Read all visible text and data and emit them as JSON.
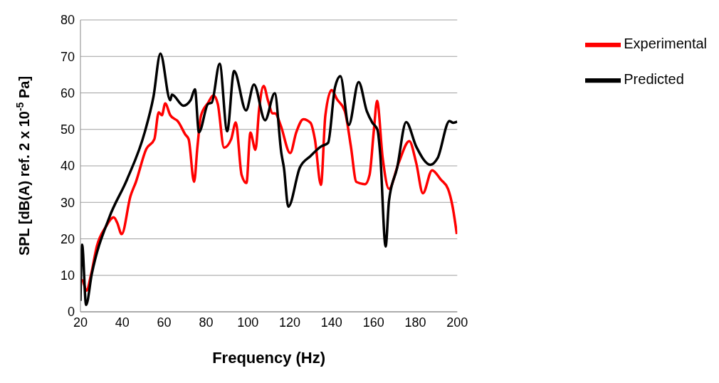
{
  "chart_data": {
    "type": "line",
    "xlabel": "Frequency (Hz)",
    "ylabel": "SPL [dB(A) ref. 2 x 10$^{-5}$ Pa]",
    "xlim": [
      20,
      200
    ],
    "xticks": [
      20,
      40,
      60,
      80,
      100,
      120,
      140,
      160,
      180,
      200
    ],
    "ylim": [
      0,
      80
    ],
    "yticks": [
      0,
      10,
      20,
      30,
      40,
      50,
      60,
      70,
      80
    ],
    "grid": "y",
    "legend": "top right",
    "marker": "none",
    "line_style": "solid",
    "series": [
      {
        "name": "Experimental",
        "color": "#ff0000",
        "x": [
          20,
          20.8,
          22.9,
          25,
          27.9,
          32.1,
          35.9,
          37.5,
          39.7,
          43.9,
          46.5,
          51.5,
          55.3,
          57.4,
          58.9,
          60.5,
          62.9,
          66.7,
          70.1,
          71.7,
          74.3,
          75.9,
          77.6,
          81,
          83.5,
          85.6,
          88.6,
          92,
          94.2,
          97,
          99.3,
          101.2,
          103.6,
          105.4,
          107.5,
          109.7,
          111.8,
          113,
          115.6,
          120.2,
          123.1,
          126.5,
          129.9,
          132,
          134.9,
          137,
          140,
          142.5,
          146.3,
          149.2,
          151.8,
          156,
          158.1,
          160.2,
          161.7,
          164.4,
          167.4,
          172,
          177.1,
          180.4,
          183.6,
          188,
          192.2,
          195.6,
          197.7,
          199.8
        ],
        "values": [
          8.5,
          8.7,
          5.8,
          10,
          18.1,
          23.3,
          25.9,
          24.5,
          21.3,
          31.7,
          35.6,
          44.7,
          47.3,
          54.7,
          53.9,
          57.1,
          53.9,
          52.1,
          48.6,
          47.3,
          35.6,
          45.3,
          53.8,
          57.3,
          59.3,
          57,
          45,
          47.3,
          51.9,
          37.5,
          35.3,
          49.1,
          44.4,
          55.7,
          61.9,
          57.7,
          54.4,
          54.4,
          51.2,
          43.5,
          49.2,
          52.8,
          51.8,
          47.3,
          34.8,
          53.8,
          60.8,
          58.3,
          55,
          45.3,
          35.6,
          35,
          37.5,
          49.9,
          57.8,
          42.1,
          33.7,
          40.8,
          46.8,
          40.8,
          32.5,
          38.8,
          36.2,
          33.7,
          29.1,
          21.3
        ]
      },
      {
        "name": "Predicted",
        "color": "#000000",
        "x": [
          20,
          20.8,
          22.7,
          25.4,
          33.8,
          42.2,
          50.7,
          54.9,
          58.2,
          62.9,
          63.7,
          69.2,
          72.6,
          74.7,
          76.6,
          81,
          82.7,
          86.5,
          90.1,
          93.4,
          99.1,
          102.9,
          108.2,
          112.8,
          116,
          117.2,
          119.3,
          124.8,
          129.9,
          134.9,
          138.3,
          141.6,
          144.2,
          148.2,
          152.9,
          156.8,
          159.4,
          161.9,
          163.2,
          165.8,
          167.4,
          171.3,
          175.6,
          180.4,
          187.2,
          190.6,
          196.3,
          198.1,
          200
        ],
        "values": [
          3,
          18.4,
          1.9,
          10.3,
          25.9,
          36.2,
          49.2,
          59,
          70.8,
          58,
          59.5,
          56.5,
          58,
          61,
          49.2,
          57,
          57.3,
          68,
          49.5,
          66,
          55.2,
          62.3,
          52.5,
          59.9,
          43.4,
          39.5,
          28.8,
          39.5,
          42.7,
          45.3,
          46.3,
          61.5,
          64.6,
          51.2,
          63,
          55,
          51.9,
          49.9,
          43.2,
          17.9,
          30.4,
          39.5,
          52,
          45.3,
          40.3,
          42.1,
          52.3,
          51.8,
          52.1
        ]
      }
    ]
  }
}
